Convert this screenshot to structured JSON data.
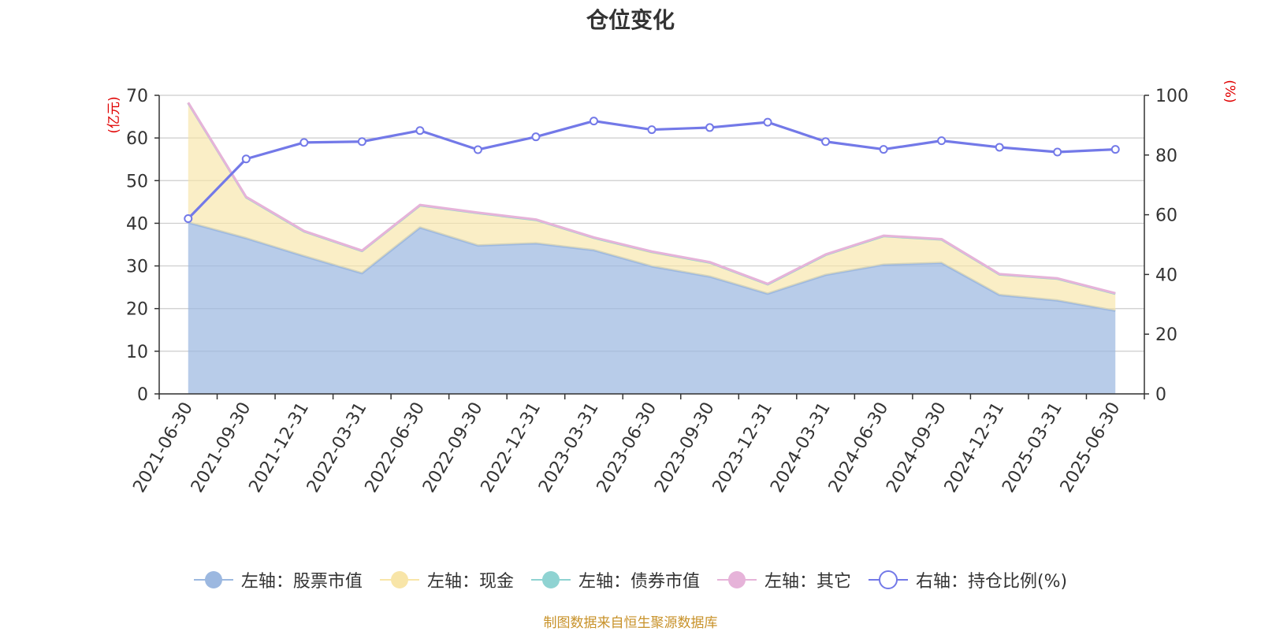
{
  "title": "仓位变化",
  "source_note": "制图数据来自恒生聚源数据库",
  "chart_data": {
    "type": "area",
    "categories": [
      "2021-06-30",
      "2021-09-30",
      "2021-12-31",
      "2022-03-31",
      "2022-06-30",
      "2022-09-30",
      "2022-12-31",
      "2023-03-31",
      "2023-06-30",
      "2023-09-30",
      "2023-12-31",
      "2024-03-31",
      "2024-06-30",
      "2024-09-30",
      "2024-12-31",
      "2025-03-31",
      "2025-06-30"
    ],
    "left_axis": {
      "unit_label": "(亿元)",
      "ylim": [
        0,
        70
      ],
      "ticks": [
        0,
        10,
        20,
        30,
        40,
        50,
        60,
        70
      ]
    },
    "right_axis": {
      "unit_label": "(%)",
      "ylim": [
        0,
        100
      ],
      "ticks": [
        0,
        20,
        40,
        60,
        80,
        100
      ]
    },
    "series": [
      {
        "name": "左轴：股票市值",
        "axis": "left",
        "kind": "stacked-area",
        "color": "#9cb8e0",
        "values": [
          40.2,
          36.5,
          32.3,
          28.3,
          39.0,
          34.8,
          35.3,
          33.7,
          29.9,
          27.5,
          23.5,
          27.9,
          30.3,
          30.7,
          23.2,
          21.9,
          19.5
        ]
      },
      {
        "name": "左轴：现金",
        "axis": "left",
        "kind": "stacked-area",
        "color": "#f8e5a8",
        "values": [
          28.0,
          9.6,
          5.8,
          5.2,
          5.2,
          7.6,
          5.5,
          2.9,
          3.3,
          3.3,
          2.2,
          4.7,
          6.7,
          5.5,
          4.8,
          5.1,
          4.0
        ]
      },
      {
        "name": "左轴：债券市值",
        "axis": "left",
        "kind": "stacked-area",
        "color": "#8fd3d2",
        "values": [
          0,
          0,
          0,
          0,
          0,
          0,
          0,
          0,
          0.1,
          0,
          0,
          0,
          0,
          0,
          0,
          0,
          0
        ]
      },
      {
        "name": "左轴：其它",
        "axis": "left",
        "kind": "stacked-area",
        "color": "#e6b3d9",
        "values": [
          0.1,
          0.1,
          0.1,
          0.1,
          0.1,
          0.1,
          0.1,
          0.1,
          0.1,
          0.1,
          0.1,
          0.1,
          0.1,
          0.1,
          0.1,
          0.1,
          0.1
        ]
      },
      {
        "name": "右轴：持仓比例(%)",
        "axis": "right",
        "kind": "line",
        "color": "#7379e8",
        "values": [
          58.7,
          78.7,
          84.2,
          84.5,
          88.2,
          81.8,
          86.1,
          91.4,
          88.5,
          89.2,
          91.0,
          84.5,
          81.9,
          84.8,
          82.6,
          81.0,
          81.9
        ]
      }
    ],
    "grid": true,
    "legend_position": "bottom-center"
  }
}
